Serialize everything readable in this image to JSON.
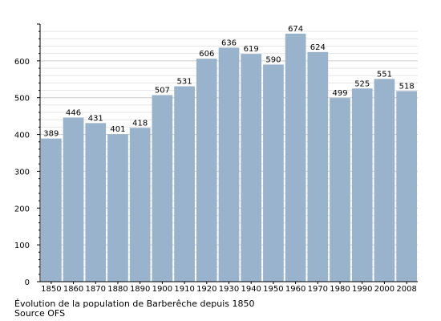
{
  "chart_data": {
    "type": "bar",
    "title": "",
    "xlabel": "",
    "ylabel": "",
    "categories": [
      "1850",
      "1860",
      "1870",
      "1880",
      "1890",
      "1900",
      "1910",
      "1920",
      "1930",
      "1940",
      "1950",
      "1960",
      "1970",
      "1980",
      "1990",
      "2000",
      "2008"
    ],
    "values": [
      389,
      446,
      431,
      401,
      418,
      507,
      531,
      606,
      636,
      619,
      590,
      674,
      624,
      499,
      525,
      551,
      518
    ],
    "ylim": [
      0,
      700
    ],
    "yticks": [
      0,
      100,
      200,
      300,
      400,
      500,
      600
    ],
    "grid": true,
    "bar_color": "#9ab3cc",
    "gridline_color": "#cccccc"
  },
  "caption": {
    "line1": "Évolution de la population de Barberêche depuis 1850",
    "line2": "Source OFS"
  }
}
